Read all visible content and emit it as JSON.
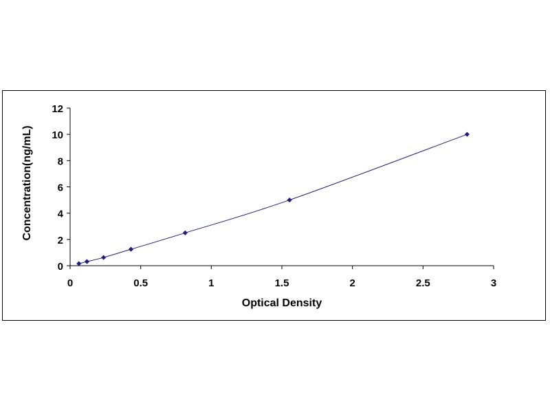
{
  "chart_data": {
    "type": "scatter",
    "title": "",
    "xlabel": "Optical Density",
    "ylabel": "Concentration(ng/mL)",
    "xlim": [
      0,
      3
    ],
    "ylim": [
      0,
      12
    ],
    "x_ticks": [
      "0",
      "0.5",
      "1",
      "1.5",
      "2",
      "2.5",
      "3"
    ],
    "y_ticks": [
      "0",
      "2",
      "4",
      "6",
      "8",
      "10",
      "12"
    ],
    "grid": false,
    "legend": "none",
    "series": [
      {
        "points": [
          {
            "x": 0.062,
            "y": 0.156
          },
          {
            "x": 0.119,
            "y": 0.312
          },
          {
            "x": 0.237,
            "y": 0.625
          },
          {
            "x": 0.431,
            "y": 1.25
          },
          {
            "x": 0.815,
            "y": 2.5
          },
          {
            "x": 1.554,
            "y": 5
          },
          {
            "x": 2.812,
            "y": 10
          }
        ],
        "color": "#1f1f7a",
        "trendline": true
      }
    ]
  }
}
